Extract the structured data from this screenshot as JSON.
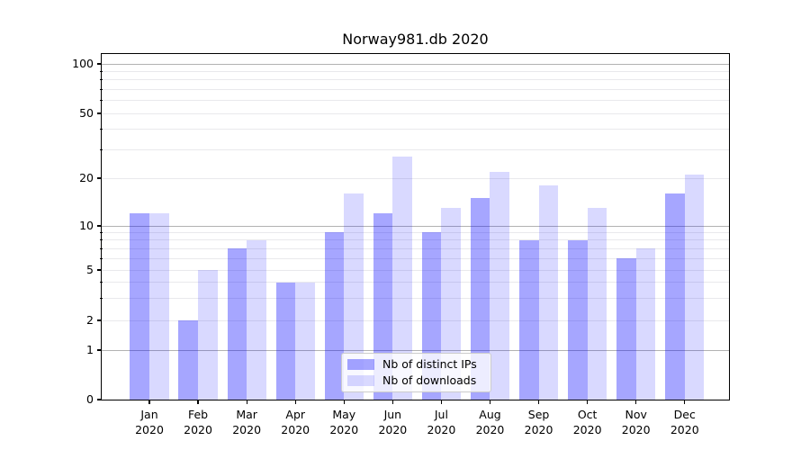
{
  "title": "Norway981.db 2020",
  "legend": {
    "items": [
      {
        "label": "Nb of distinct IPs"
      },
      {
        "label": "Nb of downloads"
      }
    ]
  },
  "axes": {
    "x_months": [
      "Jan",
      "Feb",
      "Mar",
      "Apr",
      "May",
      "Jun",
      "Jul",
      "Aug",
      "Sep",
      "Oct",
      "Nov",
      "Dec"
    ],
    "x_year": "2020",
    "y_labeled_ticks": [
      0,
      1,
      2,
      5,
      10,
      20,
      50,
      100
    ],
    "y_major_gridlines": [
      1,
      10,
      100
    ],
    "y_minor_gridlines": [
      2,
      3,
      4,
      5,
      6,
      7,
      8,
      9,
      20,
      30,
      40,
      50,
      60,
      70,
      80,
      90
    ],
    "y_minor_tick_marks": [
      3,
      4,
      6,
      7,
      8,
      9,
      30,
      40,
      60,
      70,
      80,
      90
    ]
  },
  "chart_data": {
    "type": "bar",
    "title": "Norway981.db 2020",
    "categories": [
      "Jan 2020",
      "Feb 2020",
      "Mar 2020",
      "Apr 2020",
      "May 2020",
      "Jun 2020",
      "Jul 2020",
      "Aug 2020",
      "Sep 2020",
      "Oct 2020",
      "Nov 2020",
      "Dec 2020"
    ],
    "series": [
      {
        "name": "Nb of distinct IPs",
        "values": [
          12,
          2,
          7,
          4,
          9,
          12,
          9,
          15,
          8,
          8,
          6,
          16
        ],
        "color": "rgba(0,0,255,0.35)",
        "color_on_white": "#a6a6ff"
      },
      {
        "name": "Nb of downloads",
        "values": [
          12,
          5,
          8,
          4,
          16,
          27,
          13,
          22,
          18,
          13,
          7,
          21
        ],
        "color": "rgba(0,0,255,0.15)",
        "color_on_white": "#d9d9ff"
      }
    ],
    "xlabel": "",
    "ylabel": "",
    "yscale": "symlog",
    "ylim": [
      0,
      115
    ],
    "grid": "horizontal, major and log-minor",
    "legend_position": "lower center"
  }
}
